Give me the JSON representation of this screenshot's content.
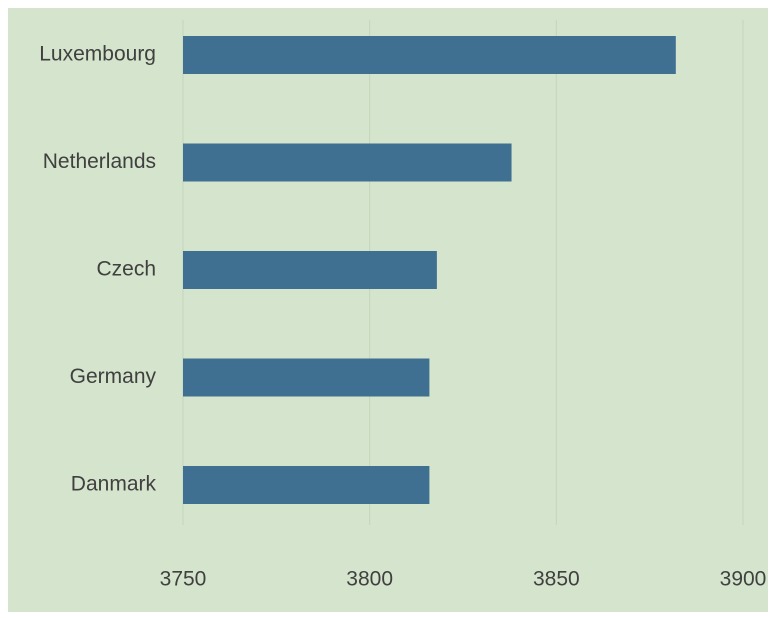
{
  "chart_data": {
    "type": "bar",
    "orientation": "horizontal",
    "categories": [
      "Luxembourg",
      "Netherlands",
      "Czech",
      "Germany",
      "Danmark"
    ],
    "values": [
      3882,
      3838,
      3818,
      3816,
      3816
    ],
    "color": "#3f6f91",
    "xlim": [
      3750,
      3900
    ],
    "xticks": [
      3750,
      3800,
      3850,
      3900
    ],
    "grid": true
  }
}
